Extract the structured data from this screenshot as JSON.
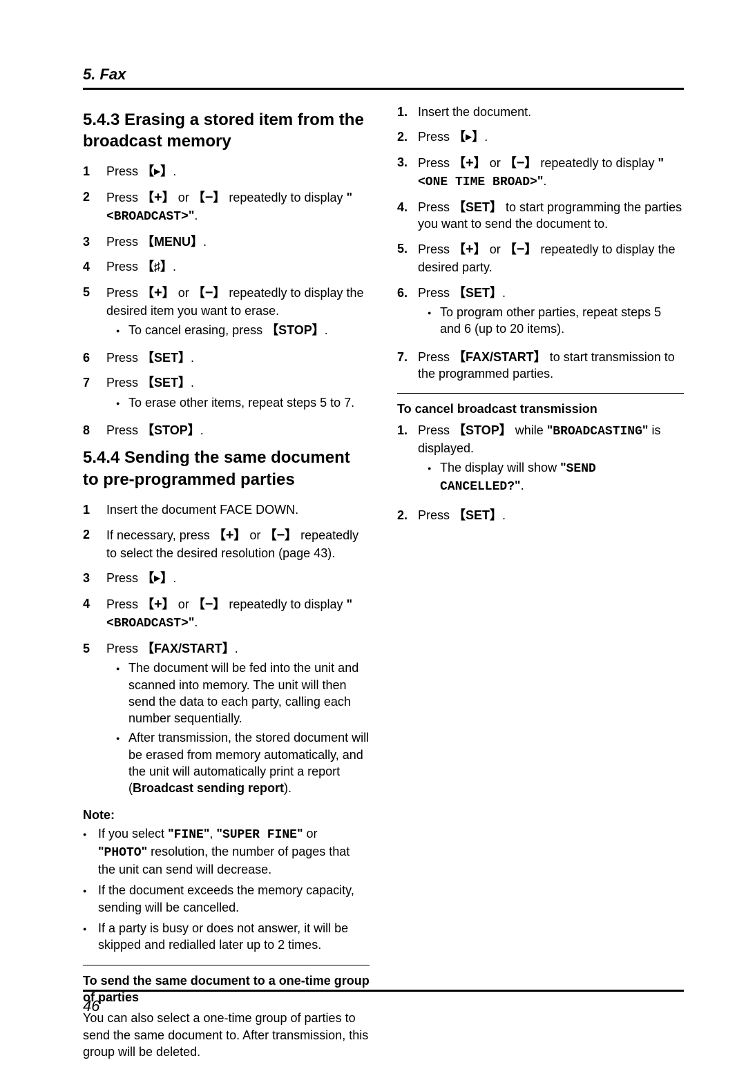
{
  "chapter": "5. Fax",
  "pageNumber": "46",
  "left": {
    "h543": "5.4.3 Erasing a stored item from the broadcast memory",
    "steps543": [
      {
        "n": "1",
        "html": "Press <span class='brk-l'></span><span class='tri'></span><span class='brk-r'></span>."
      },
      {
        "n": "2",
        "html": "Press <span class='brk-l'></span><span class='plus'></span><span class='brk-r'></span> or <span class='brk-l'></span><span class='minus'></span><span class='brk-r'></span> repeatedly to display <span class='bold'>\"</span><span class='disp'>&lt;BROADCAST&gt;</span><span class='bold'>\"</span>."
      },
      {
        "n": "3",
        "html": "Press <span class='brk-l'></span><span class='btn'>MENU</span><span class='brk-r'></span>."
      },
      {
        "n": "4",
        "html": "Press <span class='brk-l'></span><span class='hash'></span><span class='brk-r'></span>."
      },
      {
        "n": "5",
        "html": "Press <span class='brk-l'></span><span class='plus'></span><span class='brk-r'></span> or <span class='brk-l'></span><span class='minus'></span><span class='brk-r'></span> repeatedly to display the desired item you want to erase.",
        "bullets": [
          "To cancel erasing, press <span class='brk-l'></span><span class='btn'>STOP</span><span class='brk-r'></span>."
        ]
      },
      {
        "n": "6",
        "html": "Press <span class='brk-l'></span><span class='btn'>SET</span><span class='brk-r'></span>."
      },
      {
        "n": "7",
        "html": "Press <span class='brk-l'></span><span class='btn'>SET</span><span class='brk-r'></span>.",
        "bullets": [
          "To erase other items, repeat steps 5 to 7."
        ]
      },
      {
        "n": "8",
        "html": "Press <span class='brk-l'></span><span class='btn'>STOP</span><span class='brk-r'></span>."
      }
    ],
    "h544": "5.4.4 Sending the same document to pre-programmed parties",
    "steps544": [
      {
        "n": "1",
        "html": "Insert the document FACE DOWN."
      },
      {
        "n": "2",
        "html": "If necessary, press <span class='brk-l'></span><span class='plus'></span><span class='brk-r'></span> or <span class='brk-l'></span><span class='minus'></span><span class='brk-r'></span> repeatedly to select the desired resolution (page 43)."
      },
      {
        "n": "3",
        "html": "Press <span class='brk-l'></span><span class='tri'></span><span class='brk-r'></span>."
      },
      {
        "n": "4",
        "html": "Press <span class='brk-l'></span><span class='plus'></span><span class='brk-r'></span> or <span class='brk-l'></span><span class='minus'></span><span class='brk-r'></span> repeatedly to display <span class='bold'>\"</span><span class='disp'>&lt;BROADCAST&gt;</span><span class='bold'>\"</span>."
      },
      {
        "n": "5",
        "html": "Press <span class='brk-l'></span><span class='btn'>FAX/START</span><span class='brk-r'></span>.",
        "bullets": [
          "The document will be fed into the unit and scanned into memory. The unit will then send the data to each party, calling each number sequentially.",
          "After transmission, the stored document will be erased from memory automatically, and the unit will automatically print a report (<span class='bold'>Broadcast sending report</span>)."
        ]
      }
    ],
    "noteLabel": "Note:",
    "noteBullets": [
      "If you select <span class='bold'>\"</span><span class='disp'>FINE</span><span class='bold'>\"</span>, <span class='bold'>\"</span><span class='disp'>SUPER FINE</span><span class='bold'>\"</span> or <span class='bold'>\"</span><span class='disp'>PHOTO</span><span class='bold'>\"</span> resolution, the number of pages that the unit can send will decrease.",
      "If the document exceeds the memory capacity, sending will be cancelled.",
      "If a party is busy or does not answer, it will be skipped and redialled later up to 2 times."
    ],
    "onetimeHeading": "To send the same document to a one-time group of parties",
    "onetimePara": "You can also select a one-time group of parties to send the same document to. After transmission, this group will be deleted."
  },
  "right": {
    "stepsOneTime": [
      {
        "n": "1.",
        "html": "Insert the document."
      },
      {
        "n": "2.",
        "html": "Press <span class='brk-l'></span><span class='tri'></span><span class='brk-r'></span>."
      },
      {
        "n": "3.",
        "html": "Press <span class='brk-l'></span><span class='plus'></span><span class='brk-r'></span> or <span class='brk-l'></span><span class='minus'></span><span class='brk-r'></span> repeatedly to display <span class='bold'>\"</span><span class='disp'>&lt;ONE TIME BROAD&gt;</span><span class='bold'>\"</span>."
      },
      {
        "n": "4.",
        "html": "Press <span class='brk-l'></span><span class='btn'>SET</span><span class='brk-r'></span> to start programming the parties you want to send the document to."
      },
      {
        "n": "5.",
        "html": "Press <span class='brk-l'></span><span class='plus'></span><span class='brk-r'></span> or <span class='brk-l'></span><span class='minus'></span><span class='brk-r'></span> repeatedly to display the desired party."
      },
      {
        "n": "6.",
        "html": "Press <span class='brk-l'></span><span class='btn'>SET</span><span class='brk-r'></span>.",
        "bullets": [
          "To program other parties, repeat steps 5 and 6 (up to 20 items)."
        ]
      },
      {
        "n": "7.",
        "html": "Press <span class='brk-l'></span><span class='btn'>FAX/START</span><span class='brk-r'></span> to start transmission to the programmed parties."
      }
    ],
    "cancelHeading": "To cancel broadcast transmission",
    "cancelSteps": [
      {
        "n": "1.",
        "html": "Press <span class='brk-l'></span><span class='btn'>STOP</span><span class='brk-r'></span> while <span class='bold'>\"</span><span class='disp'>BROADCASTING</span><span class='bold'>\"</span> is displayed.",
        "bullets": [
          "The display will show <span class='bold'>\"</span><span class='disp'>SEND CANCELLED?</span><span class='bold'>\"</span>."
        ]
      },
      {
        "n": "2.",
        "html": "Press <span class='brk-l'></span><span class='btn'>SET</span><span class='brk-r'></span>."
      }
    ]
  }
}
